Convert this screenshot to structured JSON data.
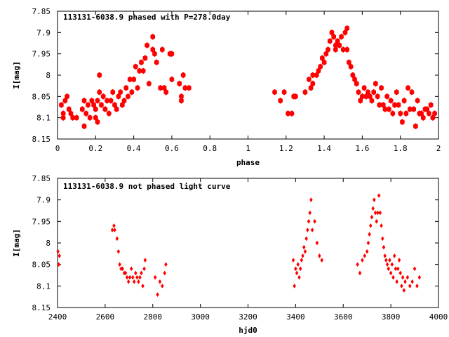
{
  "chart_data": [
    {
      "type": "scatter",
      "title": "113131-6038.9 phased with P=278.0day",
      "xlabel": "phase",
      "ylabel": "I[mag]",
      "xlim": [
        0,
        2
      ],
      "ylim": [
        8.15,
        7.85
      ],
      "y_inverted": true,
      "x_ticks": [
        0,
        0.2,
        0.4,
        0.6,
        0.8,
        1,
        1.2,
        1.4,
        1.6,
        1.8,
        2
      ],
      "y_ticks": [
        7.85,
        7.9,
        7.95,
        8,
        8.05,
        8.1,
        8.15
      ],
      "x_tick_labels": [
        "0",
        "0.2",
        "0.4",
        "0.6",
        "0.8",
        "1",
        "1.2",
        "1.4",
        "1.6",
        "1.8",
        "2"
      ],
      "y_tick_labels": [
        "7.85",
        "7.9",
        "7.95",
        "8",
        "8.05",
        "8.1",
        "8.15"
      ],
      "grid": false,
      "marker_color": "#ff0000",
      "series": [
        {
          "marker": "star",
          "points": [
            [
              0.02,
              8.07
            ],
            [
              0.03,
              8.09
            ],
            [
              0.04,
              8.06
            ],
            [
              0.05,
              8.05
            ],
            [
              0.06,
              8.08
            ],
            [
              0.07,
              8.09
            ],
            [
              0.08,
              8.1
            ],
            [
              0.03,
              8.1
            ],
            [
              0.1,
              8.1
            ],
            [
              0.13,
              8.08
            ],
            [
              0.14,
              8.06
            ],
            [
              0.15,
              8.09
            ],
            [
              0.16,
              8.07
            ],
            [
              0.17,
              8.1
            ],
            [
              0.14,
              8.12
            ],
            [
              0.18,
              8.06
            ],
            [
              0.19,
              8.07
            ],
            [
              0.2,
              8.08
            ],
            [
              0.2,
              8.1
            ],
            [
              0.21,
              8.11
            ],
            [
              0.21,
              8.06
            ],
            [
              0.22,
              8.04
            ],
            [
              0.23,
              8.07
            ],
            [
              0.24,
              8.05
            ],
            [
              0.25,
              8.08
            ],
            [
              0.22,
              8
            ],
            [
              0.26,
              8.06
            ],
            [
              0.27,
              8.09
            ],
            [
              0.28,
              8.06
            ],
            [
              0.29,
              8.04
            ],
            [
              0.3,
              8.07
            ],
            [
              0.31,
              8.08
            ],
            [
              0.32,
              8.05
            ],
            [
              0.33,
              8.04
            ],
            [
              0.34,
              8.07
            ],
            [
              0.35,
              8.06
            ],
            [
              0.36,
              8.03
            ],
            [
              0.37,
              8.05
            ],
            [
              0.38,
              8.01
            ],
            [
              0.39,
              8.04
            ],
            [
              0.4,
              8.01
            ],
            [
              0.41,
              7.98
            ],
            [
              0.42,
              8.03
            ],
            [
              0.43,
              7.99
            ],
            [
              0.44,
              7.97
            ],
            [
              0.45,
              7.99
            ],
            [
              0.46,
              7.96
            ],
            [
              0.47,
              7.93
            ],
            [
              0.48,
              8.02
            ],
            [
              0.5,
              7.94
            ],
            [
              0.5,
              7.91
            ],
            [
              0.51,
              7.95
            ],
            [
              0.52,
              7.97
            ],
            [
              0.54,
              8.03
            ],
            [
              0.55,
              7.94
            ],
            [
              0.56,
              8.03
            ],
            [
              0.57,
              8.04
            ],
            [
              0.59,
              7.95
            ],
            [
              0.6,
              7.95
            ],
            [
              0.6,
              8.01
            ],
            [
              0.64,
              8.02
            ],
            [
              0.65,
              8.06
            ],
            [
              0.65,
              8.05
            ],
            [
              0.66,
              8
            ],
            [
              0.67,
              8.03
            ],
            [
              0.69,
              8.03
            ],
            [
              1.14,
              8.04
            ],
            [
              1.17,
              8.06
            ],
            [
              1.19,
              8.04
            ],
            [
              1.21,
              8.09
            ],
            [
              1.23,
              8.09
            ],
            [
              1.24,
              8.05
            ],
            [
              1.25,
              8.05
            ],
            [
              1.3,
              8.04
            ],
            [
              1.32,
              8.01
            ],
            [
              1.33,
              8.03
            ],
            [
              1.34,
              8.02
            ],
            [
              1.34,
              8
            ],
            [
              1.36,
              8
            ],
            [
              1.37,
              7.99
            ],
            [
              1.38,
              7.98
            ],
            [
              1.39,
              7.96
            ],
            [
              1.4,
              7.97
            ],
            [
              1.41,
              7.95
            ],
            [
              1.42,
              7.94
            ],
            [
              1.43,
              7.92
            ],
            [
              1.44,
              7.9
            ],
            [
              1.45,
              7.91
            ],
            [
              1.46,
              7.94
            ],
            [
              1.46,
              7.93
            ],
            [
              1.47,
              7.92
            ],
            [
              1.48,
              7.93
            ],
            [
              1.49,
              7.91
            ],
            [
              1.5,
              7.94
            ],
            [
              1.51,
              7.9
            ],
            [
              1.52,
              7.89
            ],
            [
              1.52,
              7.94
            ],
            [
              1.53,
              7.97
            ],
            [
              1.54,
              7.98
            ],
            [
              1.55,
              8
            ],
            [
              1.56,
              8.01
            ],
            [
              1.57,
              8.02
            ],
            [
              1.58,
              8.04
            ],
            [
              1.59,
              8.06
            ],
            [
              1.6,
              8.05
            ],
            [
              1.61,
              8.03
            ],
            [
              1.62,
              8.05
            ],
            [
              1.63,
              8.04
            ],
            [
              1.64,
              8.05
            ],
            [
              1.65,
              8.06
            ],
            [
              1.66,
              8.04
            ],
            [
              1.67,
              8.02
            ],
            [
              1.68,
              8.05
            ],
            [
              1.69,
              8.07
            ],
            [
              1.7,
              8.03
            ],
            [
              1.71,
              8.07
            ],
            [
              1.72,
              8.08
            ],
            [
              1.73,
              8.05
            ],
            [
              1.74,
              8.08
            ],
            [
              1.75,
              8.06
            ],
            [
              1.76,
              8.09
            ],
            [
              1.77,
              8.07
            ],
            [
              1.78,
              8.04
            ],
            [
              1.79,
              8.07
            ],
            [
              1.8,
              8.09
            ],
            [
              1.81,
              8.11
            ],
            [
              1.82,
              8.06
            ],
            [
              1.83,
              8.09
            ],
            [
              1.84,
              8.03
            ],
            [
              1.85,
              8.08
            ],
            [
              1.86,
              8.04
            ],
            [
              1.87,
              8.08
            ],
            [
              1.88,
              8.12
            ],
            [
              1.89,
              8.06
            ],
            [
              1.9,
              8.09
            ],
            [
              1.91,
              8.09
            ],
            [
              1.92,
              8.1
            ],
            [
              1.93,
              8.08
            ],
            [
              1.94,
              8.08
            ],
            [
              1.95,
              8.09
            ],
            [
              1.96,
              8.07
            ],
            [
              1.97,
              8.1
            ],
            [
              1.98,
              8.09
            ]
          ]
        }
      ]
    },
    {
      "type": "scatter",
      "title": "113131-6038.9 not phased light curve",
      "xlabel": "hjd0",
      "ylabel": "I[mag]",
      "xlim": [
        2400,
        4000
      ],
      "ylim": [
        8.15,
        7.85
      ],
      "y_inverted": true,
      "x_ticks": [
        2400,
        2600,
        2800,
        3000,
        3200,
        3400,
        3600,
        3800,
        4000
      ],
      "y_ticks": [
        7.85,
        7.9,
        7.95,
        8,
        8.05,
        8.1,
        8.15
      ],
      "x_tick_labels": [
        "2400",
        "2600",
        "2800",
        "3000",
        "3200",
        "3400",
        "3600",
        "3800",
        "4000"
      ],
      "y_tick_labels": [
        "7.85",
        "7.9",
        "7.95",
        "8",
        "8.05",
        "8.1",
        "8.15"
      ],
      "grid": false,
      "marker_color": "#ff0000",
      "series": [
        {
          "marker": "diamond",
          "points": [
            [
              2402,
              8.02
            ],
            [
              2405,
              8.05
            ],
            [
              2408,
              8.03
            ],
            [
              2630,
              7.97
            ],
            [
              2637,
              7.96
            ],
            [
              2640,
              7.97
            ],
            [
              2650,
              7.99
            ],
            [
              2656,
              8.02
            ],
            [
              2661,
              8.05
            ],
            [
              2667,
              8.06
            ],
            [
              2673,
              8.06
            ],
            [
              2680,
              8.07
            ],
            [
              2686,
              8.07
            ],
            [
              2692,
              8.08
            ],
            [
              2698,
              8.09
            ],
            [
              2704,
              8.08
            ],
            [
              2710,
              8.06
            ],
            [
              2716,
              8.08
            ],
            [
              2722,
              8.09
            ],
            [
              2728,
              8.07
            ],
            [
              2734,
              8.08
            ],
            [
              2740,
              8.09
            ],
            [
              2746,
              8.08
            ],
            [
              2752,
              8.07
            ],
            [
              2758,
              8.1
            ],
            [
              2764,
              8.06
            ],
            [
              2768,
              8.04
            ],
            [
              2810,
              8.08
            ],
            [
              2820,
              8.12
            ],
            [
              2830,
              8.09
            ],
            [
              2840,
              8.1
            ],
            [
              2850,
              8.07
            ],
            [
              2855,
              8.05
            ],
            [
              3390,
              8.04
            ],
            [
              3395,
              8.1
            ],
            [
              3400,
              8.06
            ],
            [
              3405,
              8.07
            ],
            [
              3410,
              8.05
            ],
            [
              3415,
              8.08
            ],
            [
              3420,
              8.06
            ],
            [
              3425,
              8.04
            ],
            [
              3430,
              8.03
            ],
            [
              3435,
              8.01
            ],
            [
              3440,
              8.02
            ],
            [
              3445,
              7.99
            ],
            [
              3450,
              7.97
            ],
            [
              3455,
              7.95
            ],
            [
              3460,
              7.93
            ],
            [
              3465,
              7.9
            ],
            [
              3470,
              7.97
            ],
            [
              3480,
              7.95
            ],
            [
              3490,
              8
            ],
            [
              3500,
              8.03
            ],
            [
              3510,
              8.04
            ],
            [
              3660,
              8.05
            ],
            [
              3670,
              8.07
            ],
            [
              3680,
              8.04
            ],
            [
              3690,
              8.03
            ],
            [
              3700,
              8.02
            ],
            [
              3705,
              8
            ],
            [
              3710,
              7.98
            ],
            [
              3715,
              7.96
            ],
            [
              3720,
              7.94
            ],
            [
              3725,
              7.92
            ],
            [
              3730,
              7.9
            ],
            [
              3735,
              7.93
            ],
            [
              3740,
              7.95
            ],
            [
              3745,
              7.93
            ],
            [
              3750,
              7.89
            ],
            [
              3755,
              7.93
            ],
            [
              3760,
              7.96
            ],
            [
              3765,
              7.99
            ],
            [
              3770,
              8.01
            ],
            [
              3775,
              8.03
            ],
            [
              3780,
              8.04
            ],
            [
              3785,
              8.05
            ],
            [
              3790,
              8.06
            ],
            [
              3795,
              8.04
            ],
            [
              3800,
              8.07
            ],
            [
              3805,
              8.05
            ],
            [
              3810,
              8.08
            ],
            [
              3815,
              8.03
            ],
            [
              3820,
              8.06
            ],
            [
              3825,
              8.09
            ],
            [
              3830,
              8.06
            ],
            [
              3835,
              8.04
            ],
            [
              3840,
              8.07
            ],
            [
              3845,
              8.1
            ],
            [
              3850,
              8.08
            ],
            [
              3855,
              8.11
            ],
            [
              3860,
              8.09
            ],
            [
              3870,
              8.08
            ],
            [
              3880,
              8.1
            ],
            [
              3890,
              8.09
            ],
            [
              3900,
              8.06
            ],
            [
              3910,
              8.1
            ],
            [
              3920,
              8.08
            ]
          ]
        }
      ]
    }
  ]
}
